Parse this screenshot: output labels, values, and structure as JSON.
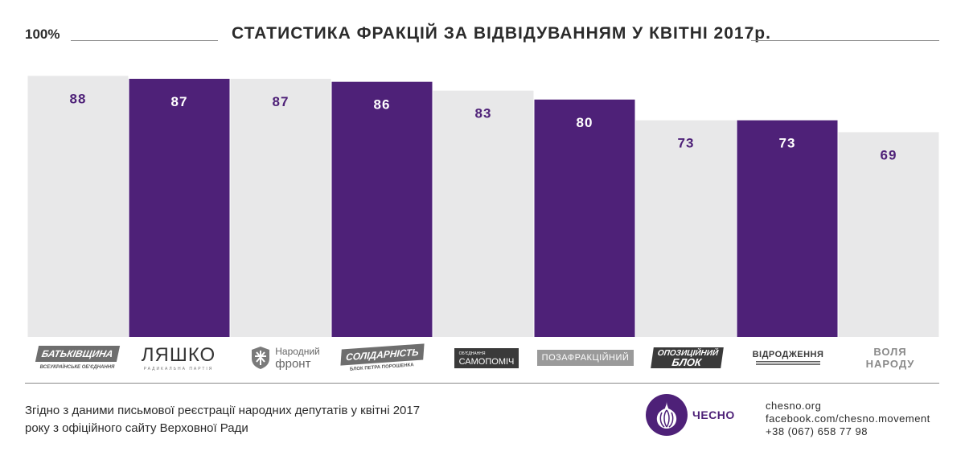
{
  "header": {
    "top_label": "100%",
    "title": "СТАТИСТИКА ФРАКЦІЙ ЗА ВІДВІДУВАННЯМ У КВІТНІ 2017р."
  },
  "chart_data": {
    "type": "bar",
    "title": "СТАТИСТИКА ФРАКЦІЙ ЗА ВІДВІДУВАННЯМ У КВІТНІ 2017р.",
    "categories": [
      "БАТЬКІВЩИНА",
      "ЛЯШКО",
      "Народний фронт",
      "СОЛІДАРНІСТЬ",
      "САМОПОМІЧ",
      "ПОЗАФРАКЦІЙНИЙ",
      "ОПОЗИЦІЙНИЙ БЛОК",
      "ВІДРОДЖЕННЯ",
      "ВОЛЯ НАРОДУ"
    ],
    "value_labels": [
      "88",
      "87",
      "87",
      "86",
      "83",
      "80",
      "73",
      "73",
      "69"
    ],
    "values": [
      88,
      87,
      87,
      86,
      83,
      80,
      73,
      73,
      69
    ],
    "ylim": [
      0,
      100
    ],
    "grid": false,
    "bar_colors": [
      "#e8e8e9",
      "#4e2178",
      "#e8e8e9",
      "#4e2178",
      "#e8e8e9",
      "#4e2178",
      "#e8e8e9",
      "#4e2178",
      "#e8e8e9"
    ],
    "label_colors": [
      "#4e2178",
      "#ffffff",
      "#4e2178",
      "#ffffff",
      "#4e2178",
      "#ffffff",
      "#4e2178",
      "#ffffff",
      "#4e2178"
    ]
  },
  "logos": {
    "batkivshchyna": {
      "name": "БАТЬКІВЩИНА",
      "sub": "ВСЕУКРАЇНСЬКЕ ОБ'ЄДНАННЯ"
    },
    "lyashko": {
      "name": "ЛЯШКО",
      "sub": "РАДИКАЛЬНА ПАРТІЯ"
    },
    "narodnyi_front": {
      "line1": "Народний",
      "line2": "фронт"
    },
    "solidarnist": {
      "name": "СОЛІДАРНІСТЬ",
      "sub": "БЛОК ПЕТРА ПОРОШЕНКА"
    },
    "samopomich": {
      "small": "ОБ'ЄДНАННЯ",
      "name": "САМОПОМІЧ"
    },
    "pozafraktsiinyi": {
      "name": "ПОЗАФРАКЦІЙНИЙ"
    },
    "opozytsiinyi_blok": {
      "line1": "ОПОЗИЦІЙНИЙ",
      "line2": "БЛОК"
    },
    "vidrodzhennia": {
      "name": "ВІДРОДЖЕННЯ"
    },
    "volya_narodu": {
      "line1": "ВОЛЯ",
      "line2": "НАРОДУ"
    }
  },
  "footer": {
    "source_line1": "Згідно з даними письмової реєстрації народних депутатів  у квітні 2017",
    "source_line2": "року з офіційного сайту Верховної Ради",
    "brand": "ЧЕСНО",
    "contact_site": "chesno.org",
    "contact_facebook": "facebook.com/chesno.movement",
    "contact_phone": "+38 (067) 658 77 98"
  },
  "colors": {
    "accent": "#4e2178",
    "bar_light": "#e8e8e9",
    "text": "#2b2b2b"
  }
}
